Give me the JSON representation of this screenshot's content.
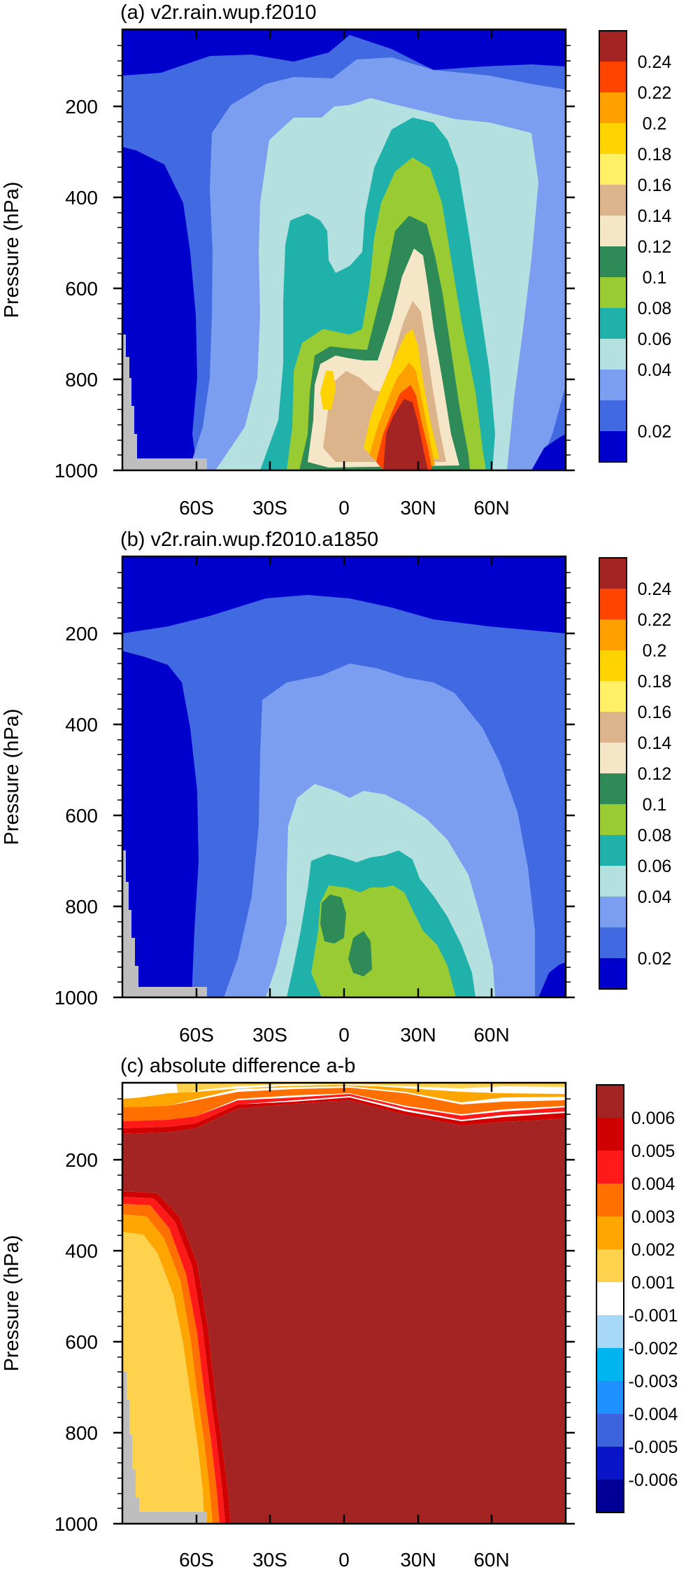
{
  "figure": {
    "ylabel": "Pressure (hPa)",
    "xticks": [
      "60S",
      "30S",
      "0",
      "30N",
      "60N"
    ],
    "yticks": [
      "200",
      "400",
      "600",
      "800",
      "1000"
    ],
    "xlim": [
      -90,
      90
    ],
    "ylim": [
      1000,
      30
    ],
    "missing_color": "#bebebe"
  },
  "chart_data": [
    {
      "type": "contour",
      "title": "(a) v2r.rain.wup.f2010",
      "colorbar": {
        "labels": [
          "0.24",
          "0.22",
          "0.2",
          "0.18",
          "0.16",
          "0.14",
          "0.12",
          "0.1",
          "0.08",
          "0.06",
          "0.04",
          "0.02"
        ],
        "colors": [
          "#a42323",
          "#ff4400",
          "#ff9f00",
          "#ffd300",
          "#fff066",
          "#dcb48c",
          "#f5e6c8",
          "#2e8b57",
          "#99cc33",
          "#20b2aa",
          "#b4e0e0",
          "#7b9ef0",
          "#4169e1",
          "#0000cd"
        ]
      },
      "layers": [
        {
          "level": 0.0,
          "color": "#0000cd"
        },
        {
          "level": 0.02,
          "color": "#4169e1"
        },
        {
          "level": 0.04,
          "color": "#7b9ef0"
        },
        {
          "level": 0.06,
          "color": "#b4e0e0"
        },
        {
          "level": 0.08,
          "color": "#20b2aa"
        },
        {
          "level": 0.1,
          "color": "#99cc33"
        },
        {
          "level": 0.12,
          "color": "#2e8b57"
        },
        {
          "level": 0.14,
          "color": "#f5e6c8"
        },
        {
          "level": 0.16,
          "color": "#dcb48c"
        },
        {
          "level": 0.2,
          "color": "#ffd300"
        },
        {
          "level": 0.22,
          "color": "#ff9f00"
        },
        {
          "level": 0.24,
          "color": "#ff4400"
        },
        {
          "level": 0.26,
          "color": "#a42323"
        }
      ]
    },
    {
      "type": "contour",
      "title": "(b) v2r.rain.wup.f2010.a1850",
      "colorbar": {
        "labels": [
          "0.24",
          "0.22",
          "0.2",
          "0.18",
          "0.16",
          "0.14",
          "0.12",
          "0.1",
          "0.08",
          "0.06",
          "0.04",
          "0.02"
        ],
        "colors": [
          "#a42323",
          "#ff4400",
          "#ff9f00",
          "#ffd300",
          "#fff066",
          "#dcb48c",
          "#f5e6c8",
          "#2e8b57",
          "#99cc33",
          "#20b2aa",
          "#b4e0e0",
          "#7b9ef0",
          "#4169e1",
          "#0000cd"
        ]
      },
      "layers": [
        {
          "level": 0.0,
          "color": "#0000cd"
        },
        {
          "level": 0.02,
          "color": "#4169e1"
        },
        {
          "level": 0.04,
          "color": "#7b9ef0"
        },
        {
          "level": 0.06,
          "color": "#b4e0e0"
        },
        {
          "level": 0.08,
          "color": "#20b2aa"
        },
        {
          "level": 0.1,
          "color": "#99cc33"
        },
        {
          "level": 0.12,
          "color": "#2e8b57"
        }
      ]
    },
    {
      "type": "contour",
      "title": "(c) absolute difference a-b",
      "colorbar": {
        "labels": [
          "0.006",
          "0.005",
          "0.004",
          "0.003",
          "0.002",
          "0.001",
          "-0.001",
          "-0.002",
          "-0.003",
          "-0.004",
          "-0.005",
          "-0.006"
        ],
        "colors": [
          "#a42323",
          "#d00000",
          "#ff1a1a",
          "#ff7000",
          "#ffa500",
          "#ffd24d",
          "#ffffff",
          "#a8d8f8",
          "#00b4f0",
          "#1e90ff",
          "#3c64dc",
          "#0a14c8",
          "#000096"
        ]
      },
      "layers": [
        {
          "level": 0.0,
          "color": "#ffffff"
        },
        {
          "level": 0.001,
          "color": "#ffd24d"
        },
        {
          "level": 0.002,
          "color": "#ffa500"
        },
        {
          "level": 0.003,
          "color": "#ff7000"
        },
        {
          "level": 0.004,
          "color": "#ff1a1a"
        },
        {
          "level": 0.005,
          "color": "#d00000"
        },
        {
          "level": 0.006,
          "color": "#a42323"
        }
      ]
    }
  ]
}
